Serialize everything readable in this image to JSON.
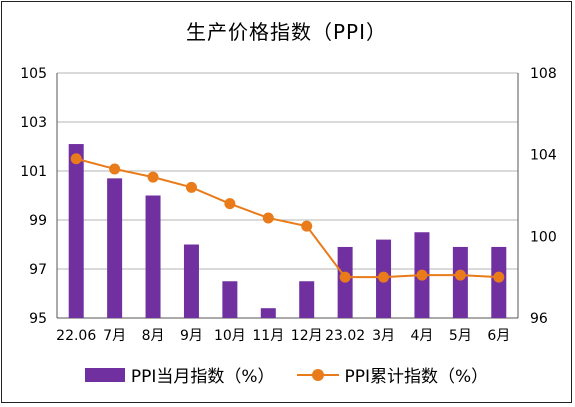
{
  "chart_data": {
    "type": "bar",
    "title": "生产价格指数（PPI）",
    "categories": [
      "22.06",
      "7月",
      "8月",
      "9月",
      "10月",
      "11月",
      "12月",
      "23.02",
      "3月",
      "4月",
      "5月",
      "6月"
    ],
    "series": [
      {
        "name": "PPI当月指数（%）",
        "type": "bar",
        "axis": "left",
        "color": "#7030A0",
        "values": [
          102.1,
          100.7,
          100.0,
          98.0,
          96.5,
          95.4,
          96.5,
          97.9,
          98.2,
          98.5,
          97.9,
          97.9
        ]
      },
      {
        "name": "PPI累计指数（%）",
        "type": "line",
        "axis": "right",
        "color": "#E97B1A",
        "values": [
          103.8,
          103.3,
          102.9,
          102.4,
          101.6,
          100.9,
          100.5,
          98.0,
          98.0,
          98.1,
          98.1,
          98.0
        ]
      }
    ],
    "y_left": {
      "min": 95,
      "max": 105,
      "ticks": [
        "95",
        "97",
        "99",
        "101",
        "103",
        "105"
      ]
    },
    "y_right": {
      "min": 96,
      "max": 108,
      "ticks": [
        "96",
        "100",
        "104",
        "108"
      ]
    },
    "grid": true,
    "legend_position": "bottom"
  }
}
